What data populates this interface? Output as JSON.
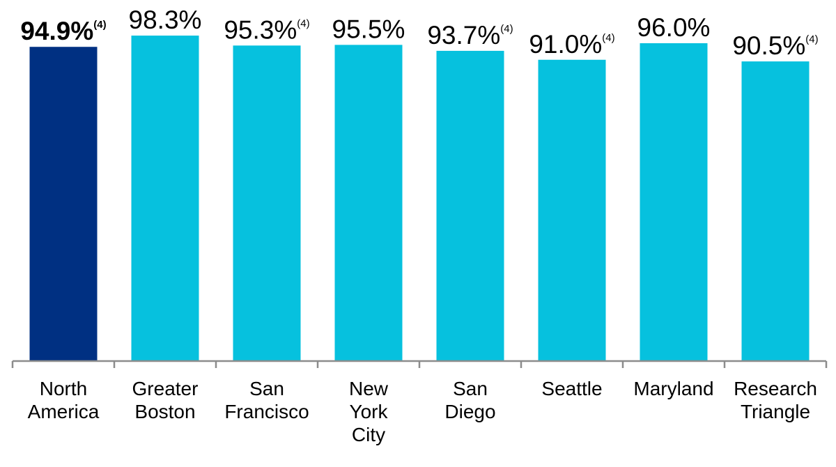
{
  "chart_data": {
    "type": "bar",
    "title": "",
    "xlabel": "",
    "ylabel": "",
    "ylim": [
      0,
      100
    ],
    "grid": false,
    "categories": [
      [
        "North",
        "America"
      ],
      [
        "Greater",
        "Boston"
      ],
      [
        "San",
        "Francisco"
      ],
      [
        "New",
        "York",
        "City"
      ],
      [
        "San",
        "Diego"
      ],
      [
        "Seattle"
      ],
      [
        "Maryland"
      ],
      [
        "Research",
        "Triangle"
      ]
    ],
    "values": [
      94.9,
      98.3,
      95.3,
      95.5,
      93.7,
      91.0,
      96.0,
      90.5
    ],
    "value_labels": [
      "94.9%",
      "98.3%",
      "95.3%",
      "95.5%",
      "93.7%",
      "91.0%",
      "96.0%",
      "90.5%"
    ],
    "footnotes": [
      "(4)",
      "",
      "(4)",
      "",
      "(4)",
      "(4)",
      "",
      "(4)"
    ],
    "highlight_index": 0,
    "colors": {
      "highlight": "#003082",
      "bar": "#06C1DE",
      "axis": "#8C8C8C"
    }
  }
}
